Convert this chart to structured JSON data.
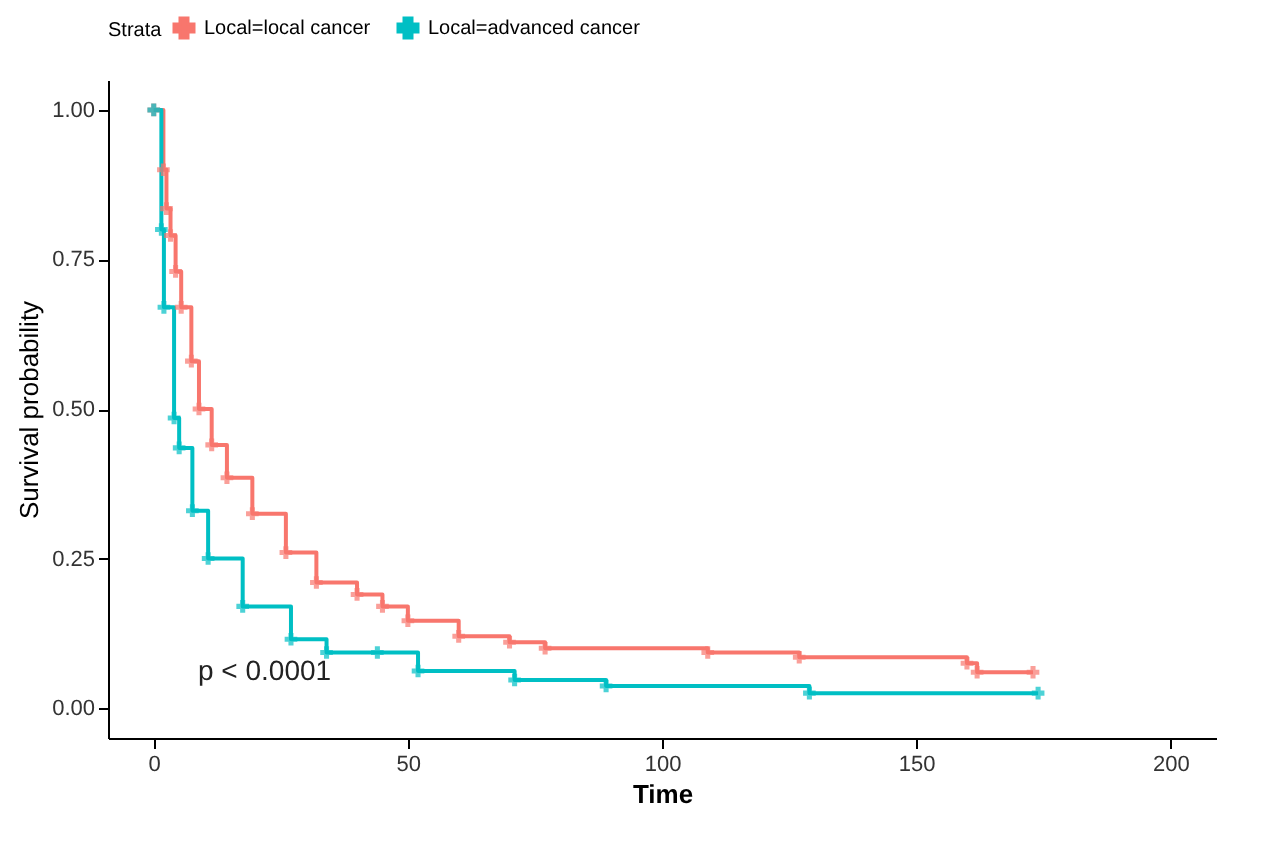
{
  "chart_data": {
    "type": "step",
    "xlabel": "Time",
    "ylabel": "Survival probability",
    "legend_title": "Strata",
    "legend": "top",
    "annotations": [
      "p < 0.0001"
    ],
    "xlim": [
      -9,
      209
    ],
    "xticks": [
      0,
      50,
      100,
      150,
      200
    ],
    "ylim": [
      -0.05,
      1.05
    ],
    "yticks": [
      {
        "value": 0,
        "label": "0.00"
      },
      0.25,
      {
        "value": 0.5,
        "label": "0.50"
      },
      0.75,
      {
        "value": 1,
        "label": "1.00"
      }
    ],
    "grid": false,
    "marker": "cross",
    "series": [
      {
        "name": "Local=local cancer",
        "color": "#f8766d",
        "x": [
          0,
          1.9,
          2.5,
          3.3,
          4.3,
          5.4,
          7.4,
          8.9,
          11.4,
          14.4,
          19.4,
          26,
          32,
          40,
          45,
          50,
          60,
          70,
          77,
          109,
          127,
          160,
          162,
          173
        ],
        "values": [
          1,
          0.9,
          0.835,
          0.79,
          0.73,
          0.67,
          0.58,
          0.5,
          0.44,
          0.385,
          0.325,
          0.26,
          0.21,
          0.19,
          0.17,
          0.146,
          0.12,
          0.11,
          0.1,
          0.093,
          0.085,
          0.075,
          0.06,
          0.06
        ]
      },
      {
        "name": "Local=advanced cancer",
        "color": "#00bfc4",
        "x": [
          0,
          1.5,
          2,
          4,
          5,
          7.6,
          10.7,
          17.5,
          27,
          34,
          44,
          52,
          71,
          89,
          129,
          174
        ],
        "values": [
          1,
          0.8,
          0.67,
          0.485,
          0.435,
          0.33,
          0.25,
          0.17,
          0.115,
          0.093,
          0.093,
          0.062,
          0.047,
          0.037,
          0.025,
          0.025
        ]
      }
    ]
  }
}
